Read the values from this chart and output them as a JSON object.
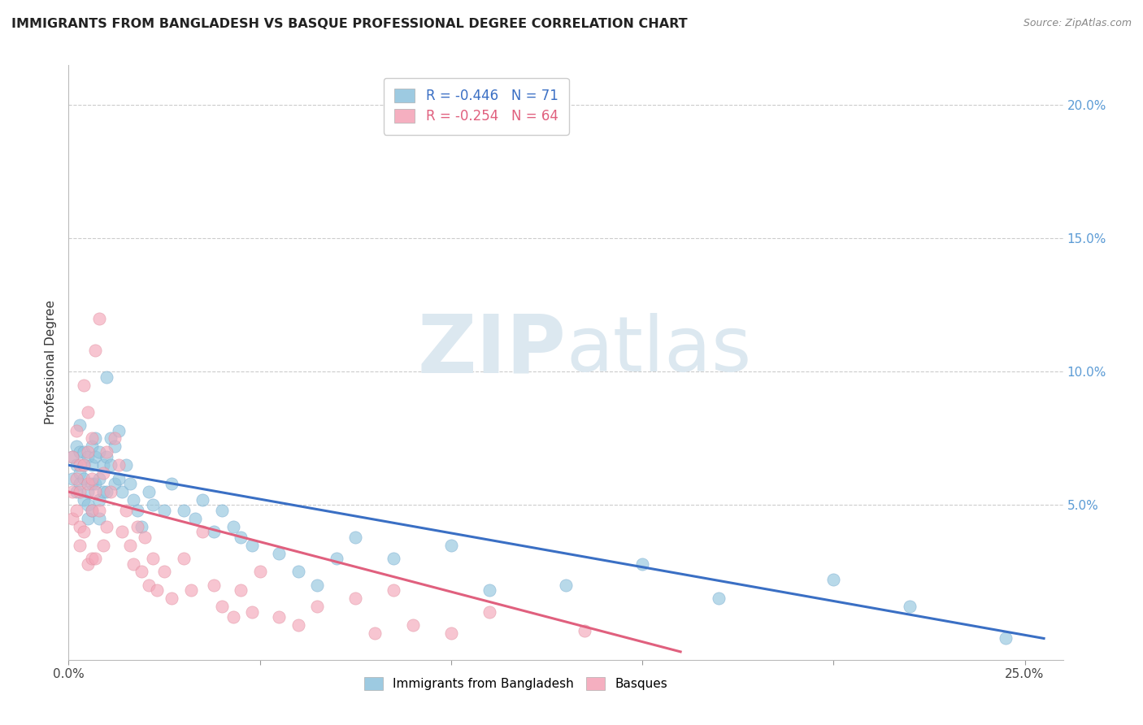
{
  "title": "IMMIGRANTS FROM BANGLADESH VS BASQUE PROFESSIONAL DEGREE CORRELATION CHART",
  "source": "Source: ZipAtlas.com",
  "ylabel_left": "Professional Degree",
  "xlim": [
    0.0,
    0.26
  ],
  "ylim": [
    -0.008,
    0.215
  ],
  "legend_entries": [
    {
      "label": "Immigrants from Bangladesh",
      "color": "#92c5de",
      "R": "-0.446",
      "N": "71"
    },
    {
      "label": "Basques",
      "color": "#f08090",
      "R": "-0.254",
      "N": "64"
    }
  ],
  "background_color": "#ffffff",
  "grid_color": "#cccccc",
  "blue_color": "#92c5de",
  "pink_color": "#f4a7b9",
  "blue_line_color": "#3a6fc4",
  "pink_line_color": "#e0607e",
  "blue_scatter": {
    "x": [
      0.001,
      0.001,
      0.002,
      0.002,
      0.002,
      0.003,
      0.003,
      0.003,
      0.003,
      0.004,
      0.004,
      0.004,
      0.004,
      0.005,
      0.005,
      0.005,
      0.005,
      0.006,
      0.006,
      0.006,
      0.006,
      0.007,
      0.007,
      0.007,
      0.008,
      0.008,
      0.008,
      0.008,
      0.009,
      0.009,
      0.01,
      0.01,
      0.01,
      0.011,
      0.011,
      0.012,
      0.012,
      0.013,
      0.013,
      0.014,
      0.015,
      0.016,
      0.017,
      0.018,
      0.019,
      0.021,
      0.022,
      0.025,
      0.027,
      0.03,
      0.033,
      0.035,
      0.038,
      0.04,
      0.043,
      0.045,
      0.048,
      0.055,
      0.06,
      0.065,
      0.07,
      0.075,
      0.085,
      0.1,
      0.11,
      0.13,
      0.15,
      0.17,
      0.2,
      0.22,
      0.245
    ],
    "y": [
      0.068,
      0.06,
      0.065,
      0.055,
      0.072,
      0.07,
      0.062,
      0.058,
      0.08,
      0.065,
      0.06,
      0.07,
      0.052,
      0.068,
      0.055,
      0.05,
      0.045,
      0.072,
      0.065,
      0.058,
      0.048,
      0.075,
      0.068,
      0.058,
      0.07,
      0.06,
      0.052,
      0.045,
      0.065,
      0.055,
      0.098,
      0.068,
      0.055,
      0.075,
      0.065,
      0.072,
      0.058,
      0.078,
      0.06,
      0.055,
      0.065,
      0.058,
      0.052,
      0.048,
      0.042,
      0.055,
      0.05,
      0.048,
      0.058,
      0.048,
      0.045,
      0.052,
      0.04,
      0.048,
      0.042,
      0.038,
      0.035,
      0.032,
      0.025,
      0.02,
      0.03,
      0.038,
      0.03,
      0.035,
      0.018,
      0.02,
      0.028,
      0.015,
      0.022,
      0.012,
      0.0
    ]
  },
  "pink_scatter": {
    "x": [
      0.001,
      0.001,
      0.001,
      0.002,
      0.002,
      0.002,
      0.003,
      0.003,
      0.003,
      0.003,
      0.004,
      0.004,
      0.004,
      0.005,
      0.005,
      0.005,
      0.005,
      0.006,
      0.006,
      0.006,
      0.006,
      0.007,
      0.007,
      0.007,
      0.008,
      0.008,
      0.009,
      0.009,
      0.01,
      0.01,
      0.011,
      0.012,
      0.013,
      0.014,
      0.015,
      0.016,
      0.017,
      0.018,
      0.019,
      0.02,
      0.021,
      0.022,
      0.023,
      0.025,
      0.027,
      0.03,
      0.032,
      0.035,
      0.038,
      0.04,
      0.043,
      0.045,
      0.048,
      0.05,
      0.055,
      0.06,
      0.065,
      0.075,
      0.08,
      0.085,
      0.09,
      0.1,
      0.11,
      0.135
    ],
    "y": [
      0.068,
      0.055,
      0.045,
      0.078,
      0.06,
      0.048,
      0.065,
      0.055,
      0.042,
      0.035,
      0.095,
      0.065,
      0.04,
      0.085,
      0.07,
      0.058,
      0.028,
      0.075,
      0.06,
      0.048,
      0.03,
      0.108,
      0.055,
      0.03,
      0.12,
      0.048,
      0.062,
      0.035,
      0.07,
      0.042,
      0.055,
      0.075,
      0.065,
      0.04,
      0.048,
      0.035,
      0.028,
      0.042,
      0.025,
      0.038,
      0.02,
      0.03,
      0.018,
      0.025,
      0.015,
      0.03,
      0.018,
      0.04,
      0.02,
      0.012,
      0.008,
      0.018,
      0.01,
      0.025,
      0.008,
      0.005,
      0.012,
      0.015,
      0.002,
      0.018,
      0.005,
      0.002,
      0.01,
      0.003
    ]
  },
  "blue_trend": {
    "x_start": 0.0,
    "y_start": 0.065,
    "x_end": 0.255,
    "y_end": 0.0
  },
  "pink_trend": {
    "x_start": 0.0,
    "y_start": 0.055,
    "x_end": 0.16,
    "y_end": -0.005
  }
}
